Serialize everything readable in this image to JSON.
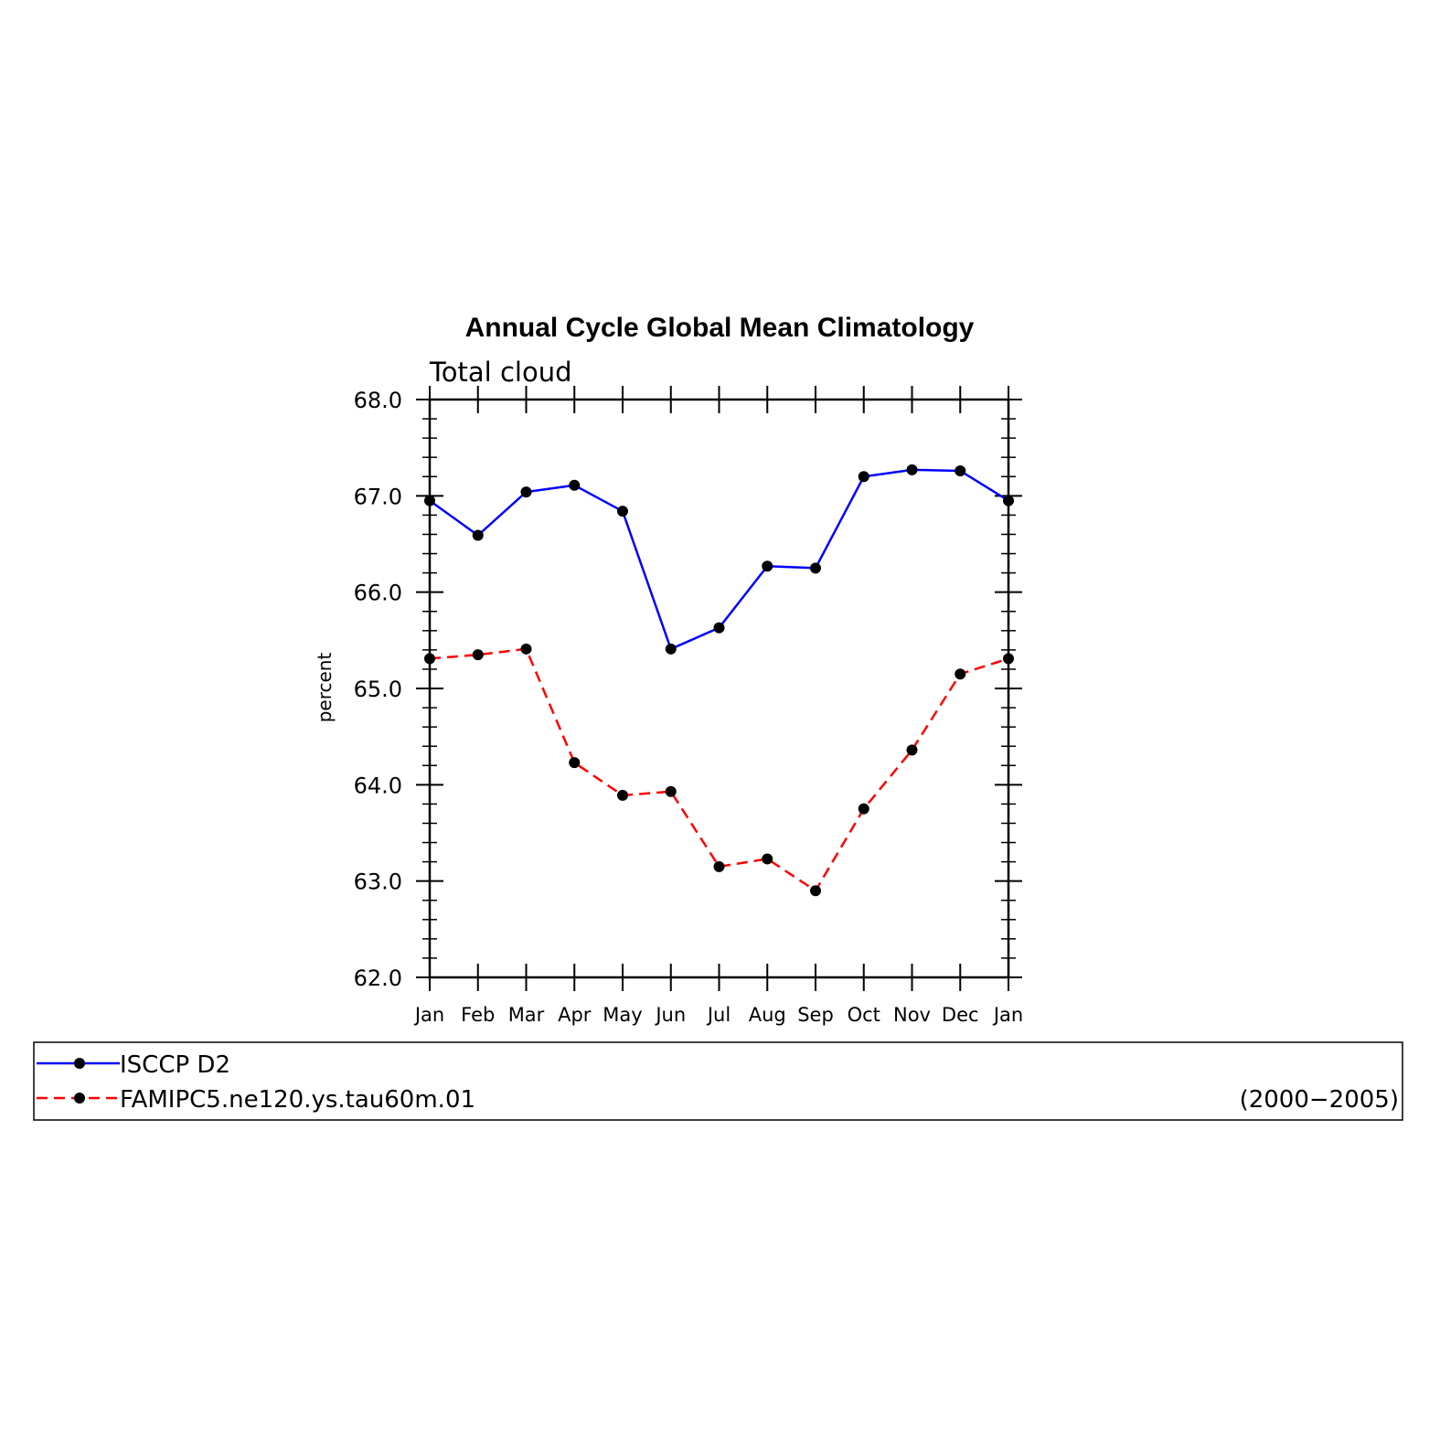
{
  "chart_data": {
    "type": "line",
    "title": "Annual Cycle Global Mean Climatology",
    "subtitle": "Total cloud",
    "xlabel": "",
    "ylabel": "percent",
    "categories": [
      "Jan",
      "Feb",
      "Mar",
      "Apr",
      "May",
      "Jun",
      "Jul",
      "Aug",
      "Sep",
      "Oct",
      "Nov",
      "Dec",
      "Jan"
    ],
    "ylim": [
      62.0,
      68.0
    ],
    "yticks": [
      "62.0",
      "63.0",
      "64.0",
      "65.0",
      "66.0",
      "67.0",
      "68.0"
    ],
    "grid": false,
    "series": [
      {
        "name": "ISCCP D2",
        "color": "#0000ff",
        "dashed": false,
        "values": [
          66.95,
          66.59,
          67.04,
          67.11,
          66.84,
          65.41,
          65.63,
          66.27,
          66.25,
          67.2,
          67.27,
          67.26,
          66.95
        ]
      },
      {
        "name": "FAMIPC5.ne120.ys.tau60m.01",
        "color": "#ff0000",
        "dashed": true,
        "values": [
          65.31,
          65.35,
          65.41,
          64.23,
          63.89,
          63.93,
          63.15,
          63.23,
          62.9,
          63.75,
          64.36,
          65.15,
          65.31
        ]
      }
    ],
    "period_label": "(2000−2005)",
    "legend_placement": "bottom"
  }
}
